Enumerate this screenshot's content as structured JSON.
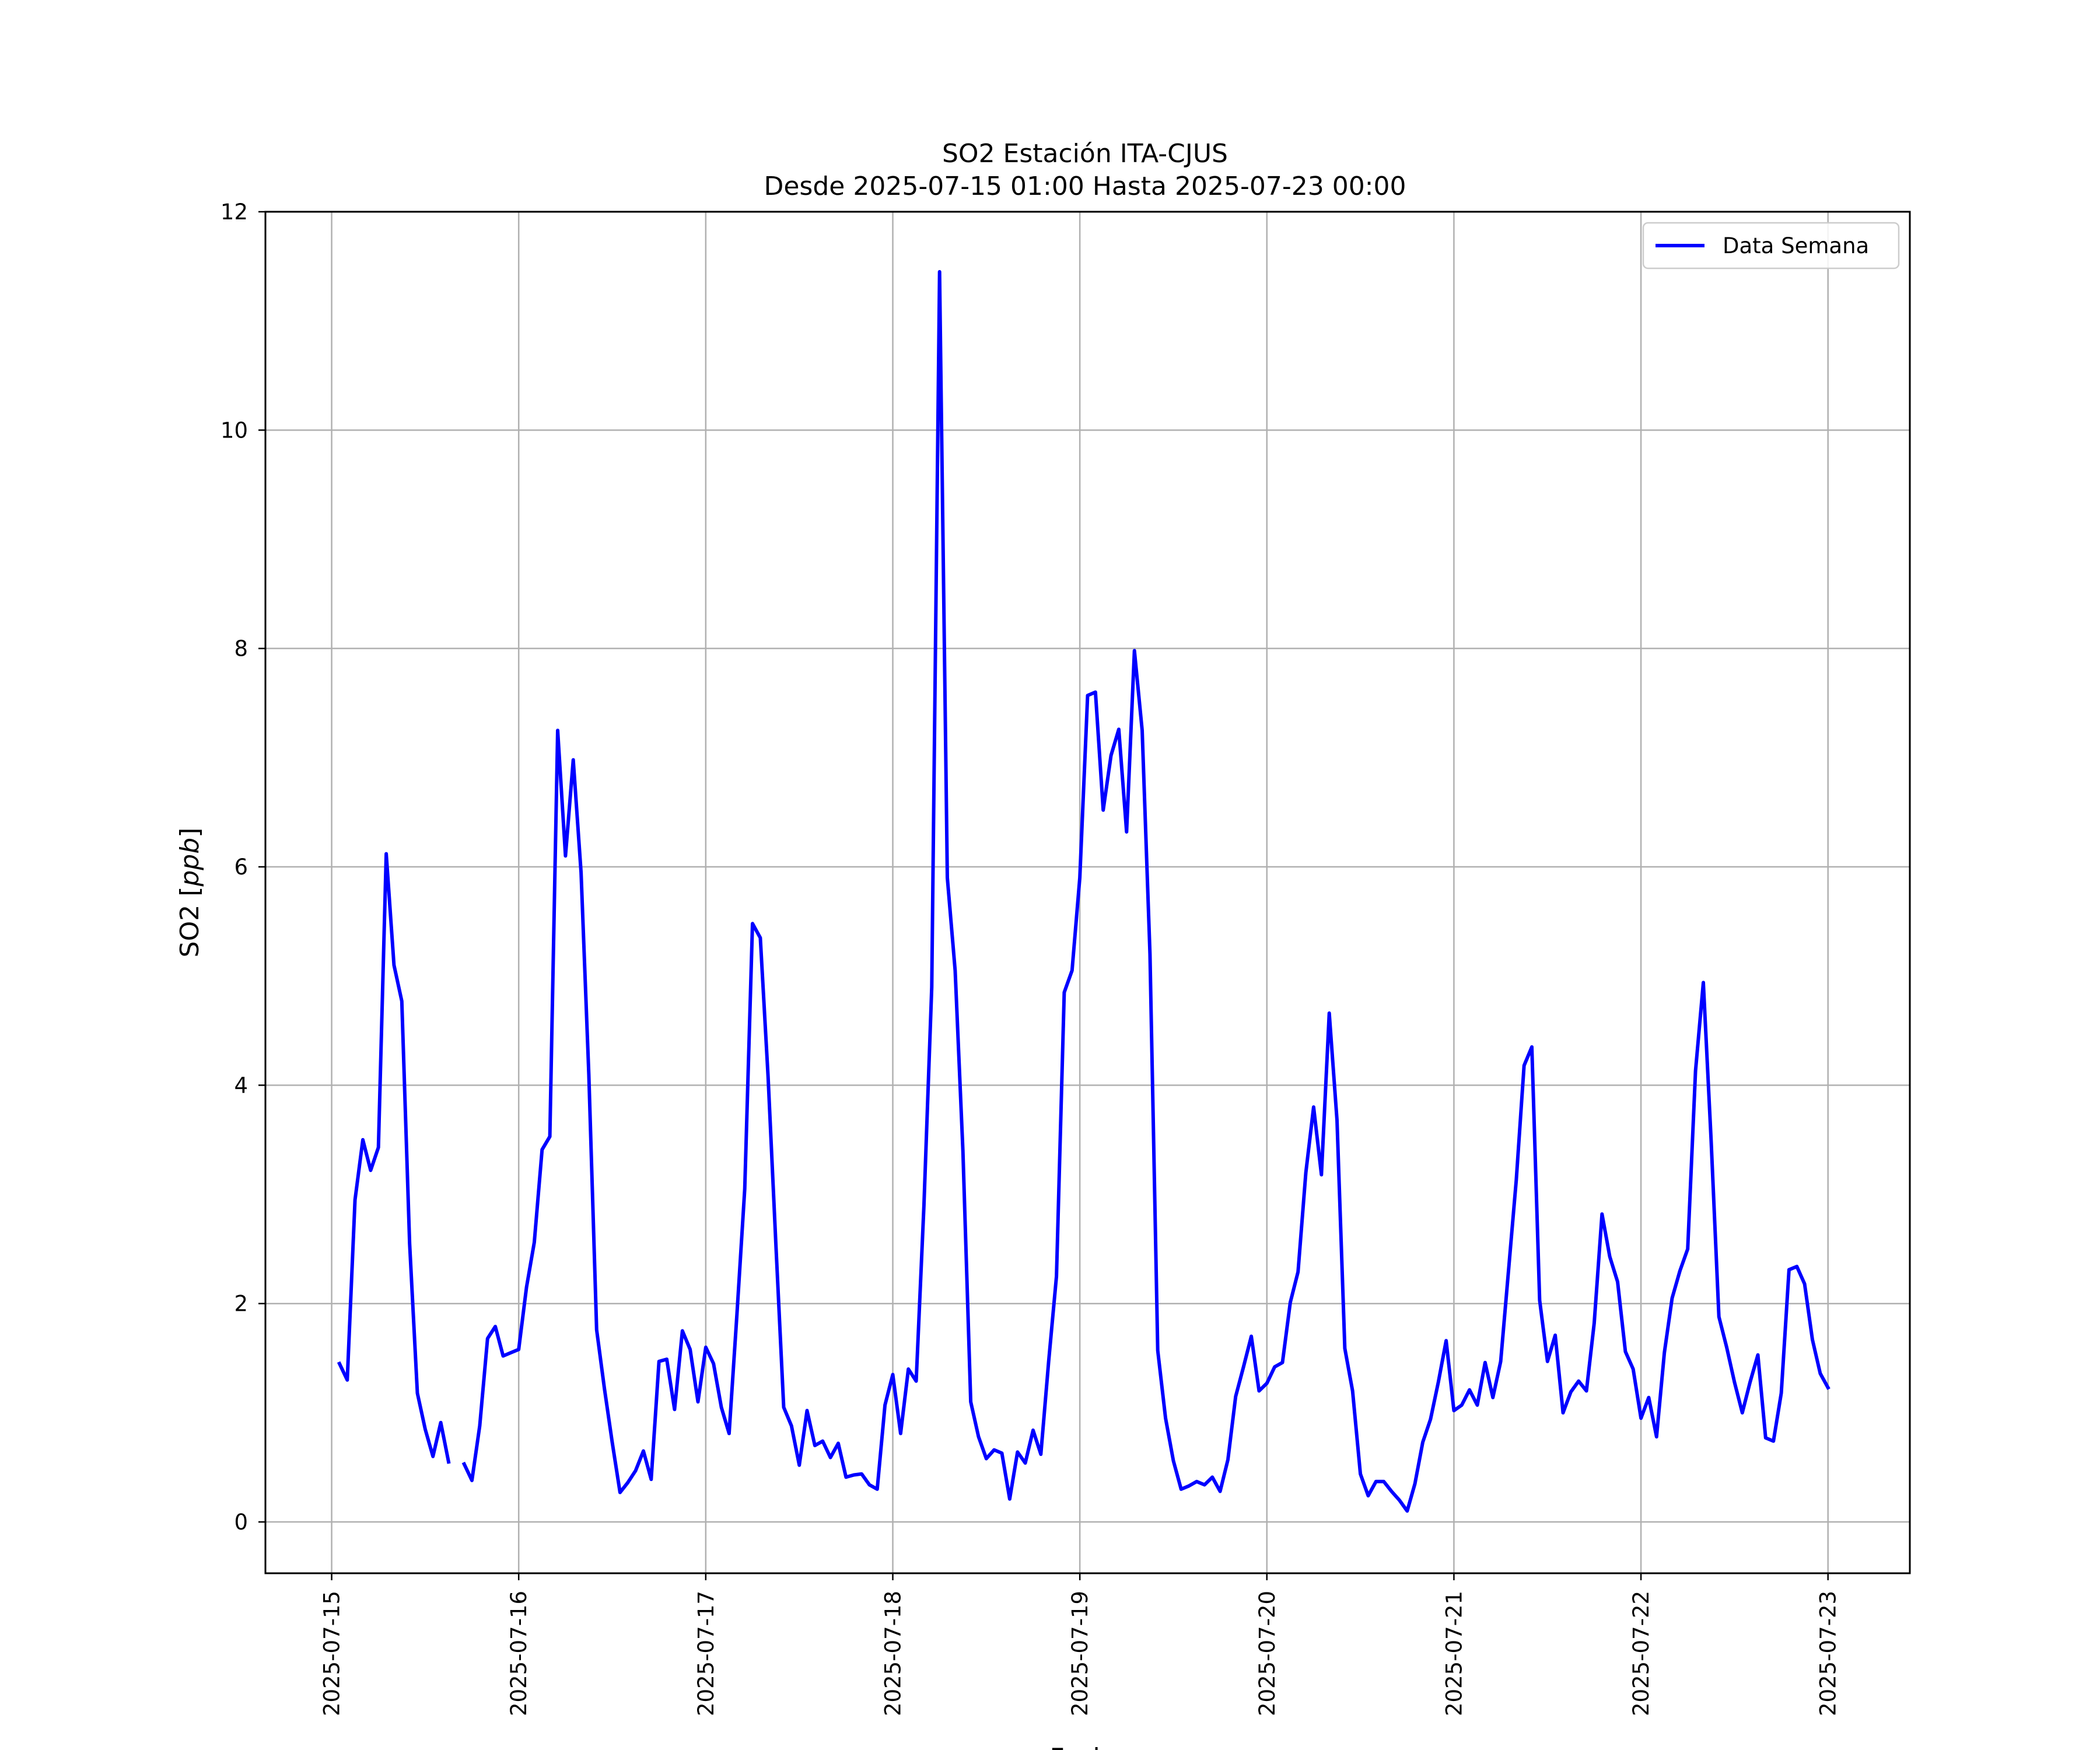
{
  "chart_data": {
    "type": "line",
    "title": "SO2 Estación ITA-CJUS",
    "subtitle": "Desde 2025-07-15 01:00 Hasta 2025-07-23 00:00",
    "xlabel": "Fecha",
    "ylabel_prefix": "SO2 [",
    "ylabel_unit": "ppb",
    "ylabel_suffix": "]",
    "x_ticks": [
      "2025-07-15",
      "2025-07-16",
      "2025-07-17",
      "2025-07-18",
      "2025-07-19",
      "2025-07-20",
      "2025-07-21",
      "2025-07-22",
      "2025-07-23"
    ],
    "y_ticks": [
      "0",
      "2",
      "4",
      "6",
      "8",
      "10",
      "12"
    ],
    "xlim": [
      "2025-07-14 15:30",
      "2025-07-23 10:30"
    ],
    "ylim": [
      -0.47,
      12.0
    ],
    "grid": true,
    "legend_position": "top-right",
    "colors": {
      "series": "#0000ff",
      "grid": "#b0b0b0",
      "axes": "#000000"
    },
    "series": [
      {
        "name": "Data Semana",
        "start": "2025-07-15 01:00",
        "interval_hours": 1,
        "values": [
          1.45,
          1.3,
          2.95,
          3.5,
          3.22,
          3.43,
          6.12,
          5.1,
          4.77,
          2.55,
          1.18,
          0.85,
          0.6,
          0.91,
          0.55,
          null,
          0.53,
          0.38,
          0.88,
          1.68,
          1.79,
          1.52,
          1.55,
          1.58,
          2.15,
          2.56,
          3.41,
          3.53,
          7.25,
          6.1,
          6.98,
          5.95,
          4.1,
          1.76,
          1.22,
          0.73,
          0.27,
          0.36,
          0.47,
          0.65,
          0.39,
          1.47,
          1.49,
          1.03,
          1.75,
          1.58,
          1.1,
          1.6,
          1.45,
          1.05,
          0.81,
          1.9,
          3.05,
          5.48,
          5.35,
          4.08,
          2.54,
          1.05,
          0.88,
          0.52,
          1.02,
          0.7,
          0.74,
          0.59,
          0.72,
          0.41,
          0.43,
          0.44,
          0.34,
          0.3,
          1.07,
          1.35,
          0.81,
          1.4,
          1.29,
          2.9,
          4.9,
          11.45,
          5.9,
          5.05,
          3.4,
          1.1,
          0.78,
          0.58,
          0.66,
          0.63,
          0.21,
          0.64,
          0.54,
          0.84,
          0.62,
          1.47,
          2.25,
          4.85,
          5.05,
          5.9,
          7.57,
          7.6,
          6.52,
          7.02,
          7.26,
          6.32,
          7.98,
          7.25,
          5.2,
          1.57,
          0.95,
          0.56,
          0.3,
          0.33,
          0.37,
          0.34,
          0.41,
          0.28,
          0.57,
          1.15,
          1.42,
          1.7,
          1.2,
          1.27,
          1.42,
          1.46,
          2.01,
          2.29,
          3.2,
          3.8,
          3.18,
          4.66,
          3.68,
          1.59,
          1.2,
          0.44,
          0.24,
          0.37,
          0.37,
          0.28,
          0.2,
          0.1,
          0.35,
          0.73,
          0.94,
          1.28,
          1.66,
          1.02,
          1.07,
          1.21,
          1.07,
          1.46,
          1.14,
          1.47,
          2.3,
          3.13,
          4.18,
          4.35,
          2.03,
          1.47,
          1.71,
          1.0,
          1.19,
          1.29,
          1.2,
          1.82,
          2.82,
          2.43,
          2.2,
          1.56,
          1.4,
          0.95,
          1.14,
          0.78,
          1.55,
          2.05,
          2.3,
          2.5,
          4.13,
          4.94,
          3.5,
          1.88,
          1.6,
          1.28,
          1.0,
          1.28,
          1.53,
          0.77,
          0.74,
          1.18,
          2.31,
          2.34,
          2.18,
          1.67,
          1.36,
          1.23
        ]
      }
    ]
  }
}
